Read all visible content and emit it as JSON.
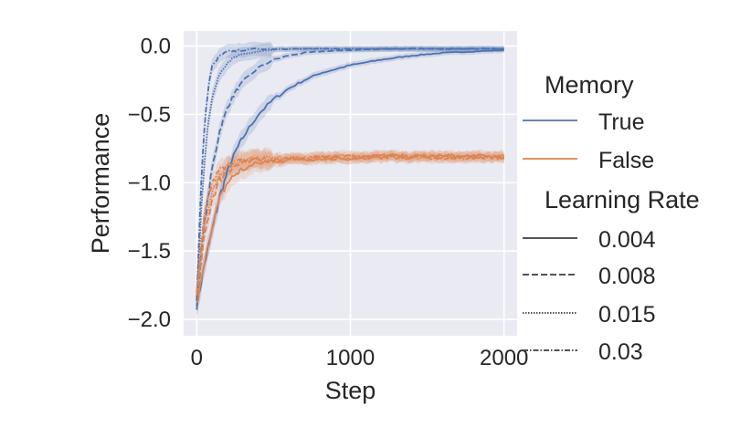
{
  "chart_data": {
    "type": "line",
    "xlabel": "Step",
    "ylabel": "Performance",
    "xlim": [
      -85,
      2085
    ],
    "ylim": [
      -2.12,
      0.11
    ],
    "xticks": [
      0,
      1000,
      2000
    ],
    "xtick_labels": [
      "0",
      "1000",
      "2000"
    ],
    "yticks": [
      0.0,
      -0.5,
      -1.0,
      -1.5,
      -2.0
    ],
    "ytick_labels": [
      "0.0",
      "−0.5",
      "−1.0",
      "−1.5",
      "−2.0"
    ],
    "grid": true,
    "background": "#eaeaf2",
    "legend": {
      "placement": "right-outside",
      "hue_title": "Memory",
      "hue_entries": [
        {
          "label": "True",
          "color": "#4c72b0"
        },
        {
          "label": "False",
          "color": "#dd8452"
        }
      ],
      "style_title": "Learning Rate",
      "style_entries": [
        {
          "label": "0.004",
          "dash": "solid"
        },
        {
          "label": "0.008",
          "dash": "dashed"
        },
        {
          "label": "0.015",
          "dash": "dotted"
        },
        {
          "label": "0.03",
          "dash": "dashdot"
        }
      ]
    },
    "series": [
      {
        "memory": "True",
        "lr": "0.004",
        "color": "#4c72b0",
        "dash": "solid",
        "x": [
          0,
          50,
          100,
          150,
          200,
          250,
          300,
          400,
          500,
          600,
          700,
          800,
          900,
          1000,
          1200,
          1400,
          1600,
          1800,
          2000
        ],
        "y": [
          -1.9,
          -1.6,
          -1.35,
          -1.1,
          -0.92,
          -0.78,
          -0.67,
          -0.5,
          -0.39,
          -0.31,
          -0.25,
          -0.2,
          -0.17,
          -0.14,
          -0.1,
          -0.07,
          -0.05,
          -0.04,
          -0.03
        ]
      },
      {
        "memory": "True",
        "lr": "0.008",
        "color": "#4c72b0",
        "dash": "dashed",
        "x": [
          0,
          50,
          100,
          150,
          200,
          250,
          300,
          400,
          500,
          600,
          700,
          800,
          1000,
          1200,
          1500,
          2000
        ],
        "y": [
          -1.88,
          -1.3,
          -0.9,
          -0.62,
          -0.45,
          -0.34,
          -0.26,
          -0.16,
          -0.1,
          -0.07,
          -0.05,
          -0.04,
          -0.03,
          -0.02,
          -0.02,
          -0.02
        ]
      },
      {
        "memory": "True",
        "lr": "0.015",
        "color": "#4c72b0",
        "dash": "dotted",
        "x": [
          0,
          25,
          50,
          75,
          100,
          150,
          200,
          250,
          300,
          400,
          500,
          600,
          800,
          1000,
          1500,
          2000
        ],
        "y": [
          -1.85,
          -1.3,
          -0.85,
          -0.55,
          -0.38,
          -0.2,
          -0.12,
          -0.08,
          -0.06,
          -0.04,
          -0.03,
          -0.02,
          -0.02,
          -0.02,
          -0.02,
          -0.02
        ]
      },
      {
        "memory": "True",
        "lr": "0.03",
        "color": "#4c72b0",
        "dash": "dashdot",
        "x": [
          0,
          25,
          50,
          75,
          100,
          150,
          200,
          300,
          400,
          600,
          1000,
          1500,
          2000
        ],
        "y": [
          -1.85,
          -1.1,
          -0.6,
          -0.3,
          -0.15,
          -0.07,
          -0.04,
          -0.03,
          -0.02,
          -0.02,
          -0.02,
          -0.02,
          -0.02
        ]
      },
      {
        "memory": "False",
        "lr": "0.004",
        "color": "#dd8452",
        "dash": "solid",
        "x": [
          0,
          50,
          100,
          150,
          200,
          250,
          300,
          400,
          500,
          600,
          800,
          1000,
          1200,
          1500,
          2000
        ],
        "y": [
          -1.9,
          -1.6,
          -1.32,
          -1.12,
          -1.0,
          -0.94,
          -0.9,
          -0.86,
          -0.84,
          -0.83,
          -0.82,
          -0.82,
          -0.81,
          -0.81,
          -0.81
        ]
      },
      {
        "memory": "False",
        "lr": "0.008",
        "color": "#dd8452",
        "dash": "dashed",
        "x": [
          0,
          50,
          100,
          150,
          200,
          250,
          300,
          400,
          500,
          600,
          800,
          1000,
          1500,
          2000
        ],
        "y": [
          -1.85,
          -1.4,
          -1.12,
          -0.98,
          -0.91,
          -0.88,
          -0.86,
          -0.84,
          -0.83,
          -0.82,
          -0.82,
          -0.81,
          -0.81,
          -0.81
        ]
      },
      {
        "memory": "False",
        "lr": "0.015",
        "color": "#dd8452",
        "dash": "dotted",
        "x": [
          0,
          50,
          100,
          150,
          200,
          250,
          300,
          400,
          600,
          800,
          1000,
          1500,
          2000
        ],
        "y": [
          -1.82,
          -1.3,
          -1.05,
          -0.94,
          -0.88,
          -0.86,
          -0.84,
          -0.83,
          -0.82,
          -0.82,
          -0.81,
          -0.81,
          -0.81
        ]
      },
      {
        "memory": "False",
        "lr": "0.03",
        "color": "#dd8452",
        "dash": "dashdot",
        "x": [
          0,
          50,
          100,
          150,
          200,
          250,
          300,
          400,
          600,
          800,
          1000,
          1500,
          2000
        ],
        "y": [
          -1.8,
          -1.2,
          -1.0,
          -0.91,
          -0.87,
          -0.85,
          -0.84,
          -0.83,
          -0.82,
          -0.82,
          -0.81,
          -0.81,
          -0.81
        ]
      }
    ]
  }
}
